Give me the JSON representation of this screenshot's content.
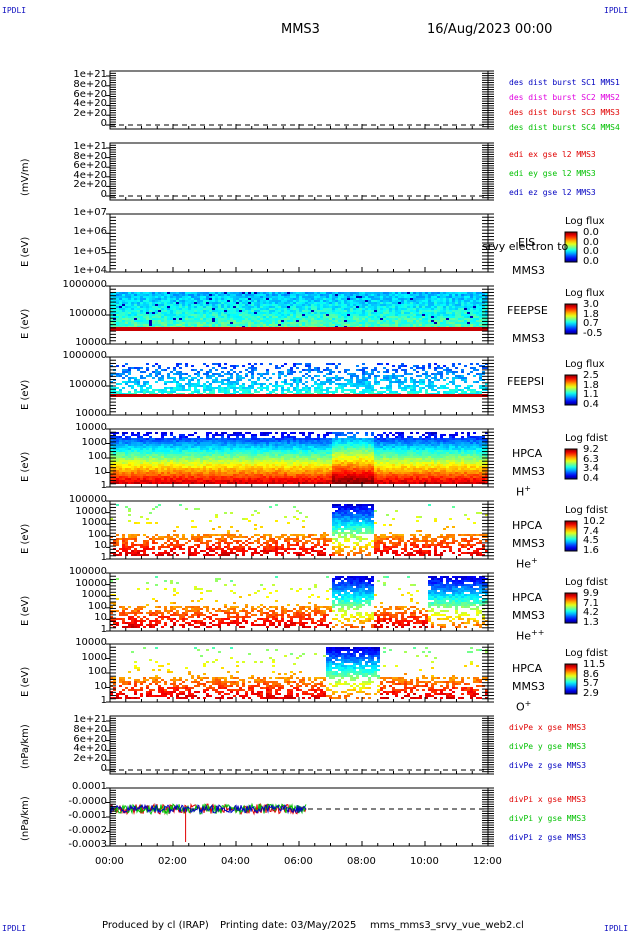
{
  "header": {
    "corner_left_top": "IPDLI",
    "corner_right_top": "IPDLI",
    "corner_left_bottom": "IPDLI",
    "corner_right_bottom": "IPDLI",
    "spacecraft": "MMS3",
    "datetime": "16/Aug/2023 00:00"
  },
  "footer": {
    "produced": "Produced by  cl (IRAP)",
    "printing": "Printing date: 03/May/2025",
    "script": "mms_mms3_srvy_vue_web2.cl"
  },
  "xaxis": {
    "ticks": [
      "00:00",
      "02:00",
      "04:00",
      "06:00",
      "08:00",
      "10:00",
      "12:00"
    ],
    "range_hours": [
      0,
      12
    ]
  },
  "colors": {
    "red": "#e00000",
    "magenta": "#e000e0",
    "green": "#00c000",
    "blue": "#0000c0"
  },
  "chart_data": [
    {
      "type": "line",
      "id": "des_dist",
      "yticks": [
        "1e+21",
        "8e+20",
        "6e+20",
        "4e+20",
        "2e+20",
        "0"
      ],
      "ylabel": "",
      "legend": [
        {
          "name": "des dist burst SC1 MMS1",
          "color": "#0000c0"
        },
        {
          "name": "des dist burst SC2 MMS2",
          "color": "#e000e0"
        },
        {
          "name": "des dist burst SC3 MMS3",
          "color": "#e00000"
        },
        {
          "name": "des dist burst SC4 MMS4",
          "color": "#00c000"
        }
      ]
    },
    {
      "type": "line",
      "id": "edi",
      "yticks": [
        "1e+21",
        "8e+20",
        "6e+20",
        "4e+20",
        "2e+20",
        "0"
      ],
      "ylabel": "(mV/m)",
      "legend": [
        {
          "name": "edi ex gse l2 MMS3",
          "color": "#e00000"
        },
        {
          "name": "edi ey gse l2 MMS3",
          "color": "#00c000"
        },
        {
          "name": "edi ez gse l2 MMS3",
          "color": "#0000c0"
        }
      ]
    },
    {
      "type": "heatmap",
      "id": "eis",
      "yticks": [
        "1e+07",
        "1e+06",
        "1e+05",
        "1e+04"
      ],
      "ylabel": "E (eV)",
      "instrument": "EIS",
      "sc": "MMS3",
      "species": "",
      "overlay": "srvy electron to",
      "cbar_title": "Log flux",
      "cbar_ticks": [
        "0.0",
        "0.0",
        "0.0",
        "0.0"
      ]
    },
    {
      "type": "heatmap",
      "id": "feepse",
      "yticks": [
        "1000000",
        "100000",
        "10000"
      ],
      "ylabel": "E (eV)",
      "instrument": "FEEPSE",
      "sc": "MMS3",
      "species": "",
      "cbar_title": "Log flux",
      "cbar_ticks": [
        "3.0",
        "1.8",
        "0.7",
        "-0.5"
      ]
    },
    {
      "type": "heatmap",
      "id": "feepsi",
      "yticks": [
        "1000000",
        "100000",
        "10000"
      ],
      "ylabel": "E (eV)",
      "instrument": "FEEPSI",
      "sc": "MMS3",
      "species": "",
      "cbar_title": "Log flux",
      "cbar_ticks": [
        "2.5",
        "1.8",
        "1.1",
        "0.4"
      ]
    },
    {
      "type": "heatmap",
      "id": "hpca_h",
      "yticks": [
        "10000",
        "1000",
        "100",
        "10",
        "1"
      ],
      "ylabel": "E (eV)",
      "instrument": "HPCA",
      "sc": "MMS3",
      "species": "H",
      "charge": "+",
      "cbar_title": "Log fdist",
      "cbar_ticks": [
        "9.2",
        "6.3",
        "3.4",
        "0.4"
      ]
    },
    {
      "type": "heatmap",
      "id": "hpca_he1",
      "yticks": [
        "100000",
        "10000",
        "1000",
        "100",
        "10",
        "1"
      ],
      "ylabel": "E (eV)",
      "instrument": "HPCA",
      "sc": "MMS3",
      "species": "He",
      "charge": "+",
      "cbar_title": "Log fdist",
      "cbar_ticks": [
        "10.2",
        "7.4",
        "4.5",
        "1.6"
      ]
    },
    {
      "type": "heatmap",
      "id": "hpca_he2",
      "yticks": [
        "100000",
        "10000",
        "1000",
        "100",
        "10",
        "1"
      ],
      "ylabel": "E (eV)",
      "instrument": "HPCA",
      "sc": "MMS3",
      "species": "He",
      "charge": "++",
      "cbar_title": "Log fdist",
      "cbar_ticks": [
        "9.9",
        "7.1",
        "4.2",
        "1.3"
      ]
    },
    {
      "type": "heatmap",
      "id": "hpca_o",
      "yticks": [
        "10000",
        "1000",
        "100",
        "10",
        "1"
      ],
      "ylabel": "E (eV)",
      "instrument": "HPCA",
      "sc": "MMS3",
      "species": "O",
      "charge": "+",
      "cbar_title": "Log fdist",
      "cbar_ticks": [
        "11.5",
        "8.6",
        "5.7",
        "2.9"
      ]
    },
    {
      "type": "line",
      "id": "divpe",
      "yticks": [
        "1e+21",
        "8e+20",
        "6e+20",
        "4e+20",
        "2e+20",
        "0"
      ],
      "ylabel": "(nPa/km)",
      "legend": [
        {
          "name": "divPe x gse MMS3",
          "color": "#e00000"
        },
        {
          "name": "divPe y gse MMS3",
          "color": "#00c000"
        },
        {
          "name": "divPe z gse MMS3",
          "color": "#0000c0"
        }
      ]
    },
    {
      "type": "line",
      "id": "divpi",
      "yticks": [
        "0.0001",
        "-0.0000",
        "-0.0001",
        "-0.0002",
        "-0.0003"
      ],
      "ylabel": "(nPa/km)",
      "legend": [
        {
          "name": "divPi x gse MMS3",
          "color": "#e00000"
        },
        {
          "name": "divPi y gse MMS3",
          "color": "#00c000"
        },
        {
          "name": "divPi z gse MMS3",
          "color": "#0000c0"
        }
      ]
    }
  ]
}
